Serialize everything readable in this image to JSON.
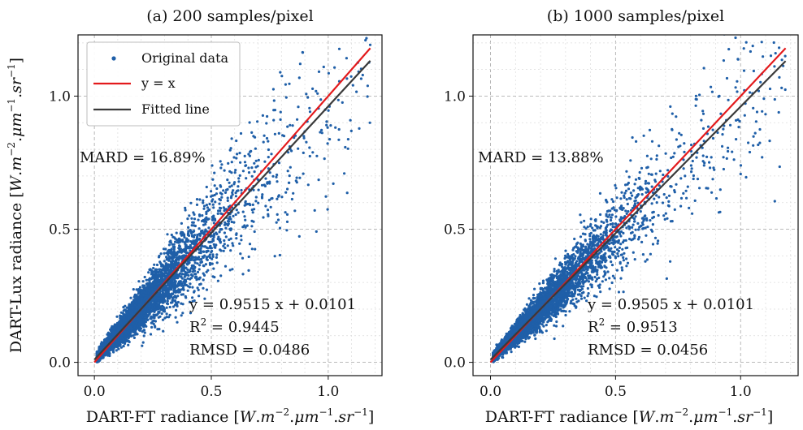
{
  "figure": {
    "ylabel": "DART-Lux radiance [W.m⁻².μm⁻¹.sr⁻¹]",
    "legend": {
      "items": [
        "Original data",
        "y = x",
        "Fitted line"
      ]
    }
  },
  "chart_data": [
    {
      "type": "scatter",
      "title": "(a) 200 samples/pixel",
      "xlabel": "DART-FT radiance [W.m⁻².μm⁻¹.sr⁻¹]",
      "ylabel": "DART-Lux radiance [W.m⁻².μm⁻¹.sr⁻¹]",
      "xlim": [
        -0.07,
        1.23
      ],
      "ylim": [
        -0.05,
        1.23
      ],
      "xticks": [
        "0.0",
        "0.5",
        "1.0"
      ],
      "yticks": [
        "0.0",
        "0.5",
        "1.0"
      ],
      "grid": true,
      "legend_position": "top-left",
      "colors": {
        "points": "#1f5fa8",
        "identity": "#e31a1c",
        "fit": "#3a3a3a"
      },
      "series": [
        {
          "name": "Original data",
          "kind": "points",
          "distribution": {
            "n": 6000,
            "relative_spread": 0.22,
            "seed": 11
          }
        },
        {
          "name": "y = x",
          "kind": "line",
          "slope": 1.0,
          "intercept": 0.0,
          "x_range": [
            0.0,
            1.18
          ]
        },
        {
          "name": "Fitted line",
          "kind": "line",
          "slope": 0.9515,
          "intercept": 0.0101,
          "x_range": [
            0.0,
            1.18
          ]
        }
      ],
      "annotations": {
        "mard": "MARD = 16.89%",
        "equation": "y = 0.9515 x + 0.0101",
        "r2_label": "R",
        "r2_sup": "2",
        "r2_value": " = 0.9445",
        "rmsd": "RMSD = 0.0486"
      }
    },
    {
      "type": "scatter",
      "title": "(b) 1000 samples/pixel",
      "xlabel": "DART-FT radiance [W.m⁻².μm⁻¹.sr⁻¹]",
      "xlim": [
        -0.07,
        1.23
      ],
      "ylim": [
        -0.05,
        1.23
      ],
      "xticks": [
        "0.0",
        "0.5",
        "1.0"
      ],
      "yticks": [
        "0.0",
        "0.5",
        "1.0"
      ],
      "grid": true,
      "colors": {
        "points": "#1f5fa8",
        "identity": "#e31a1c",
        "fit": "#3a3a3a"
      },
      "series": [
        {
          "name": "Original data",
          "kind": "points",
          "distribution": {
            "n": 6000,
            "relative_spread": 0.19,
            "seed": 29
          }
        },
        {
          "name": "y = x",
          "kind": "line",
          "slope": 1.0,
          "intercept": 0.0,
          "x_range": [
            0.0,
            1.18
          ]
        },
        {
          "name": "Fitted line",
          "kind": "line",
          "slope": 0.9505,
          "intercept": 0.0101,
          "x_range": [
            0.0,
            1.18
          ]
        }
      ],
      "annotations": {
        "mard": "MARD = 13.88%",
        "equation": "y = 0.9505 x + 0.0101",
        "r2_label": "R",
        "r2_sup": "2",
        "r2_value": " = 0.9513",
        "rmsd": "RMSD = 0.0456"
      }
    }
  ]
}
